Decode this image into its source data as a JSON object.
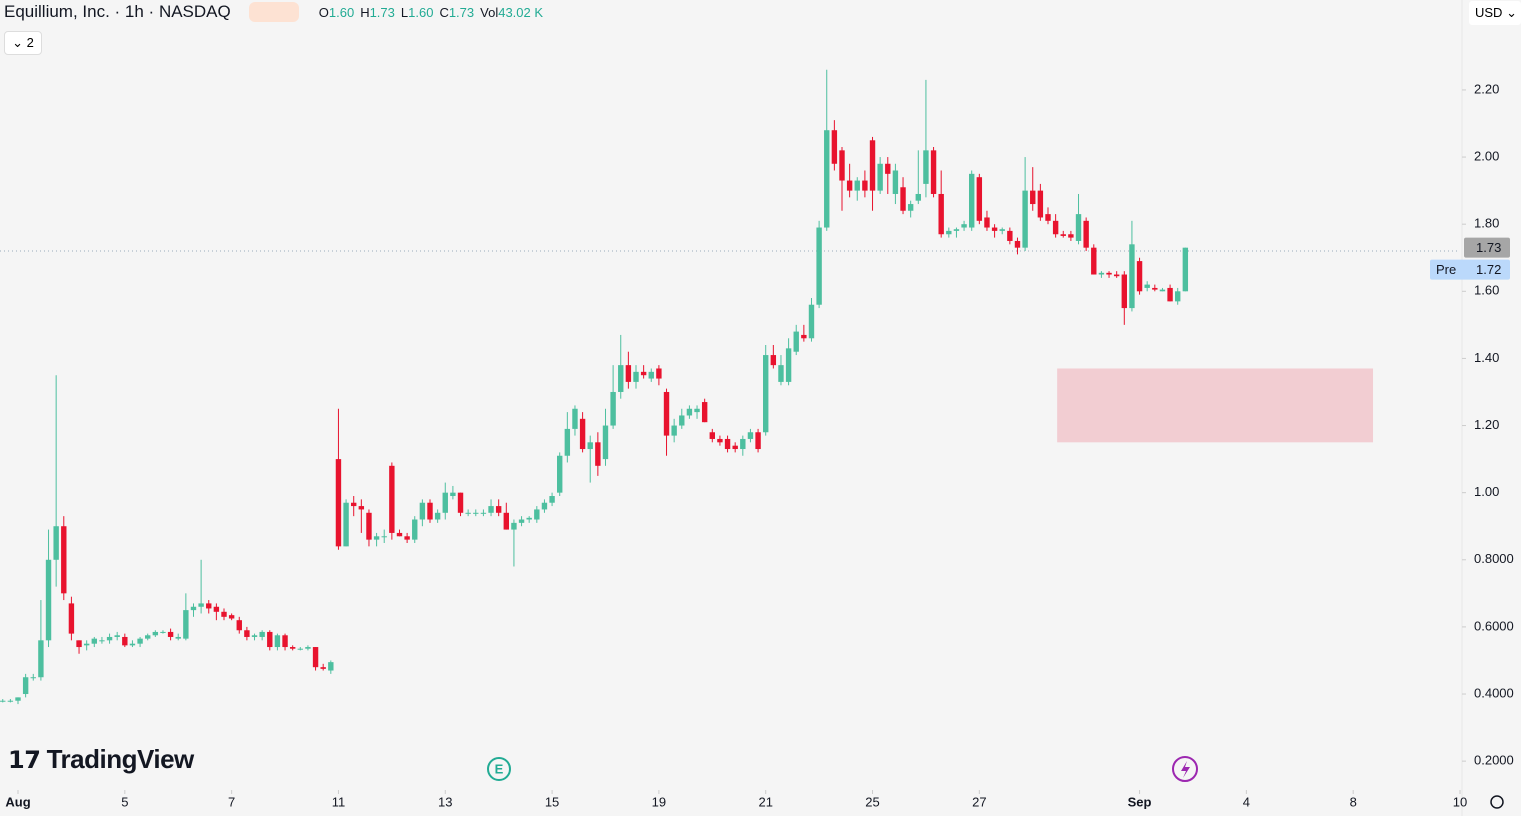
{
  "header": {
    "title": "Equillium, Inc. · 1h · NASDAQ",
    "ohlc": [
      {
        "label": "O",
        "value": "1.60"
      },
      {
        "label": "H",
        "value": "1.73"
      },
      {
        "label": "L",
        "value": "1.60"
      },
      {
        "label": "C",
        "value": "1.73"
      },
      {
        "label": "Vol",
        "value": "43.02 K"
      }
    ],
    "currency": "USD",
    "indicators_count": "2",
    "logo": "TradingView",
    "earnings_marker": "E"
  },
  "chart_data": {
    "type": "candlestick",
    "up_color": "#4dbf9f",
    "down_color": "#e8132e",
    "x": [
      -2,
      -1,
      0,
      1,
      2,
      3,
      4,
      5,
      6,
      7,
      8,
      9,
      10,
      11,
      12,
      13,
      14,
      15,
      16,
      17,
      18,
      19,
      20,
      21,
      22,
      23,
      24,
      25,
      26,
      27,
      28,
      29,
      30,
      31,
      32,
      33,
      34,
      35,
      36,
      37,
      38,
      39,
      40,
      41,
      42,
      43,
      44,
      45,
      46,
      47,
      48,
      49,
      50,
      51,
      52,
      53,
      54,
      55,
      56,
      57,
      58,
      59,
      60,
      61,
      62,
      63,
      64,
      65,
      66,
      67,
      68,
      69,
      70,
      71,
      72,
      73,
      74,
      75,
      76,
      77,
      78,
      79,
      80,
      81,
      82,
      83,
      84,
      85,
      86,
      87,
      88,
      89,
      90,
      91,
      92,
      93,
      94,
      95,
      96,
      97,
      98,
      99,
      100,
      101,
      102,
      103,
      104,
      105,
      106,
      107,
      108,
      109,
      110,
      111,
      112,
      113,
      114,
      115,
      116,
      117,
      118,
      119,
      120,
      121,
      122,
      123,
      124,
      125,
      126,
      127,
      128,
      129,
      130,
      131,
      132,
      133,
      134,
      135,
      136,
      137,
      138,
      139,
      140,
      141,
      142,
      143,
      144,
      145,
      146,
      147,
      148,
      149,
      150,
      151,
      152,
      153
    ],
    "open": [
      0.38,
      0.38,
      0.38,
      0.4,
      0.45,
      0.45,
      0.56,
      0.8,
      0.9,
      0.67,
      0.56,
      0.545,
      0.55,
      0.56,
      0.56,
      0.57,
      0.57,
      0.545,
      0.55,
      0.565,
      0.575,
      0.585,
      0.585,
      0.565,
      0.565,
      0.65,
      0.66,
      0.67,
      0.66,
      0.645,
      0.635,
      0.62,
      0.59,
      0.57,
      0.57,
      0.585,
      0.54,
      0.575,
      0.54,
      0.535,
      0.535,
      0.54,
      0.48,
      0.47,
      1.1,
      0.84,
      0.97,
      0.96,
      0.94,
      0.86,
      0.87,
      1.08,
      0.88,
      0.87,
      0.86,
      0.92,
      0.97,
      0.92,
      0.94,
      0.99,
      1.0,
      0.94,
      0.94,
      0.94,
      0.94,
      0.96,
      0.94,
      0.89,
      0.91,
      0.92,
      0.92,
      0.95,
      0.97,
      1.0,
      1.11,
      1.19,
      1.22,
      1.13,
      1.15,
      1.1,
      1.2,
      1.3,
      1.38,
      1.33,
      1.36,
      1.34,
      1.37,
      1.3,
      1.17,
      1.2,
      1.23,
      1.24,
      1.27,
      1.18,
      1.16,
      1.16,
      1.14,
      1.13,
      1.16,
      1.18,
      1.18,
      1.41,
      1.33,
      1.33,
      1.42,
      1.47,
      1.46,
      1.56,
      1.79,
      2.08,
      2.02,
      1.93,
      1.9,
      1.93,
      2.05,
      1.9,
      1.98,
      1.89,
      1.91,
      1.84,
      1.87,
      1.92,
      2.02,
      1.89,
      1.77,
      1.78,
      1.79,
      1.79,
      1.94,
      1.82,
      1.79,
      1.78,
      1.78,
      1.75,
      1.73,
      1.9,
      1.9,
      1.83,
      1.81,
      1.77,
      1.77,
      1.75,
      1.81,
      1.73,
      1.65,
      1.655,
      1.65,
      1.65,
      1.55,
      1.69,
      1.61,
      1.61,
      1.6,
      1.61,
      1.57,
      1.6
    ],
    "high": [
      0.385,
      0.385,
      0.39,
      0.46,
      0.46,
      0.68,
      0.89,
      1.35,
      0.93,
      0.69,
      0.56,
      0.56,
      0.57,
      0.57,
      0.58,
      0.585,
      0.58,
      0.56,
      0.57,
      0.58,
      0.59,
      0.59,
      0.595,
      0.58,
      0.7,
      0.67,
      0.8,
      0.68,
      0.67,
      0.655,
      0.64,
      0.63,
      0.6,
      0.58,
      0.59,
      0.59,
      0.58,
      0.58,
      0.545,
      0.54,
      0.545,
      0.54,
      0.49,
      0.5,
      1.25,
      0.98,
      0.99,
      0.98,
      0.95,
      0.88,
      0.89,
      1.09,
      0.89,
      0.88,
      0.93,
      0.98,
      0.98,
      0.95,
      1.03,
      1.02,
      1.0,
      0.95,
      0.95,
      0.95,
      0.98,
      0.98,
      0.97,
      0.92,
      0.93,
      0.93,
      0.96,
      0.98,
      1.0,
      1.12,
      1.24,
      1.26,
      1.24,
      1.17,
      1.18,
      1.25,
      1.38,
      1.47,
      1.42,
      1.38,
      1.38,
      1.37,
      1.38,
      1.31,
      1.22,
      1.25,
      1.26,
      1.26,
      1.28,
      1.19,
      1.17,
      1.17,
      1.15,
      1.17,
      1.19,
      1.19,
      1.44,
      1.44,
      1.41,
      1.46,
      1.5,
      1.5,
      1.58,
      1.81,
      2.26,
      2.11,
      2.03,
      1.98,
      1.94,
      1.96,
      2.06,
      2.0,
      2.0,
      1.98,
      1.94,
      1.87,
      2.02,
      2.23,
      2.03,
      1.96,
      1.79,
      1.79,
      1.81,
      1.96,
      1.95,
      1.84,
      1.8,
      1.79,
      1.79,
      1.76,
      2.0,
      1.97,
      1.92,
      1.85,
      1.83,
      1.78,
      1.78,
      1.89,
      1.82,
      1.74,
      1.66,
      1.66,
      1.66,
      1.66,
      1.81,
      1.7,
      1.63,
      1.62,
      1.61,
      1.62,
      1.61,
      1.73
    ],
    "low": [
      0.375,
      0.375,
      0.37,
      0.39,
      0.44,
      0.44,
      0.54,
      0.72,
      0.68,
      0.56,
      0.52,
      0.53,
      0.54,
      0.55,
      0.55,
      0.56,
      0.54,
      0.54,
      0.54,
      0.56,
      0.57,
      0.58,
      0.56,
      0.56,
      0.56,
      0.63,
      0.64,
      0.64,
      0.62,
      0.62,
      0.62,
      0.58,
      0.56,
      0.56,
      0.56,
      0.53,
      0.53,
      0.53,
      0.53,
      0.53,
      0.53,
      0.47,
      0.47,
      0.46,
      0.83,
      0.84,
      0.93,
      0.88,
      0.84,
      0.84,
      0.85,
      0.86,
      0.87,
      0.85,
      0.85,
      0.9,
      0.91,
      0.91,
      0.92,
      0.98,
      0.93,
      0.93,
      0.93,
      0.93,
      0.93,
      0.93,
      0.89,
      0.78,
      0.9,
      0.91,
      0.91,
      0.94,
      0.96,
      0.99,
      1.09,
      1.17,
      1.12,
      1.03,
      1.05,
      1.08,
      1.19,
      1.28,
      1.31,
      1.31,
      1.34,
      1.33,
      1.32,
      1.11,
      1.15,
      1.19,
      1.22,
      1.22,
      1.21,
      1.15,
      1.14,
      1.12,
      1.12,
      1.11,
      1.15,
      1.12,
      1.17,
      1.37,
      1.32,
      1.32,
      1.41,
      1.45,
      1.45,
      1.55,
      1.78,
      1.96,
      1.84,
      1.88,
      1.87,
      1.88,
      1.84,
      1.89,
      1.89,
      1.86,
      1.83,
      1.82,
      1.86,
      1.88,
      1.88,
      1.76,
      1.76,
      1.76,
      1.78,
      1.78,
      1.8,
      1.78,
      1.76,
      1.77,
      1.74,
      1.71,
      1.72,
      1.84,
      1.81,
      1.8,
      1.76,
      1.76,
      1.75,
      1.74,
      1.72,
      1.65,
      1.64,
      1.64,
      1.64,
      1.5,
      1.54,
      1.59,
      1.6,
      1.6,
      1.6,
      1.57,
      1.56,
      1.6
    ],
    "close": [
      0.38,
      0.38,
      0.39,
      0.45,
      0.45,
      0.56,
      0.8,
      0.9,
      0.7,
      0.58,
      0.54,
      0.55,
      0.565,
      0.56,
      0.57,
      0.575,
      0.545,
      0.55,
      0.565,
      0.575,
      0.585,
      0.585,
      0.57,
      0.57,
      0.65,
      0.66,
      0.67,
      0.655,
      0.645,
      0.63,
      0.625,
      0.59,
      0.57,
      0.575,
      0.585,
      0.54,
      0.575,
      0.54,
      0.535,
      0.535,
      0.54,
      0.48,
      0.475,
      0.495,
      0.84,
      0.97,
      0.96,
      0.95,
      0.86,
      0.87,
      0.87,
      0.88,
      0.87,
      0.86,
      0.92,
      0.97,
      0.92,
      0.94,
      1.0,
      1.0,
      0.94,
      0.94,
      0.94,
      0.94,
      0.96,
      0.94,
      0.89,
      0.91,
      0.92,
      0.925,
      0.95,
      0.97,
      0.99,
      1.11,
      1.19,
      1.25,
      1.13,
      1.15,
      1.08,
      1.2,
      1.3,
      1.38,
      1.33,
      1.36,
      1.35,
      1.36,
      1.34,
      1.17,
      1.2,
      1.23,
      1.25,
      1.25,
      1.21,
      1.16,
      1.15,
      1.13,
      1.13,
      1.16,
      1.18,
      1.13,
      1.41,
      1.38,
      1.38,
      1.43,
      1.48,
      1.46,
      1.56,
      1.79,
      2.08,
      1.98,
      1.93,
      1.9,
      1.93,
      1.9,
      1.9,
      1.98,
      1.95,
      1.96,
      1.84,
      1.86,
      1.89,
      2.02,
      1.89,
      1.77,
      1.78,
      1.785,
      1.8,
      1.95,
      1.81,
      1.79,
      1.78,
      1.785,
      1.75,
      1.73,
      1.9,
      1.86,
      1.82,
      1.81,
      1.77,
      1.765,
      1.76,
      1.83,
      1.73,
      1.65,
      1.655,
      1.65,
      1.645,
      1.55,
      1.74,
      1.6,
      1.62,
      1.605,
      1.605,
      1.57,
      1.6,
      1.73
    ],
    "xlim": [
      -2.36,
      189.0
    ],
    "xticks": [
      {
        "value": 0,
        "label": "Aug"
      },
      {
        "value": 14,
        "label": "5"
      },
      {
        "value": 28,
        "label": "7"
      },
      {
        "value": 42,
        "label": "11"
      },
      {
        "value": 56,
        "label": "13"
      },
      {
        "value": 70,
        "label": "15"
      },
      {
        "value": 84,
        "label": "19"
      },
      {
        "value": 98,
        "label": "21"
      },
      {
        "value": 112,
        "label": "25"
      },
      {
        "value": 126,
        "label": "27"
      },
      {
        "value": 147,
        "label": "Sep"
      },
      {
        "value": 161,
        "label": "4"
      },
      {
        "value": 175,
        "label": "8"
      },
      {
        "value": 189,
        "label": "10"
      }
    ],
    "ylim": [
      0.114,
      2.468
    ],
    "yticks": [
      {
        "value": 2.2,
        "label": "2.20"
      },
      {
        "value": 2.0,
        "label": "2.00"
      },
      {
        "value": 1.8,
        "label": "1.80"
      },
      {
        "value": 1.6,
        "label": "1.60"
      },
      {
        "value": 1.4,
        "label": "1.40"
      },
      {
        "value": 1.2,
        "label": "1.20"
      },
      {
        "value": 1.0,
        "label": "1.00"
      },
      {
        "value": 0.8,
        "label": "0.8000"
      },
      {
        "value": 0.6,
        "label": "0.6000"
      },
      {
        "value": 0.4,
        "label": "0.4000"
      },
      {
        "value": 0.2,
        "label": "0.2000"
      }
    ],
    "last_price": {
      "value": 1.73,
      "label": "1.73"
    },
    "pre_price": {
      "value": 1.72,
      "label": "1.72",
      "tag": "Pre"
    },
    "zone": {
      "x_start": 136.2,
      "x_end": 177.6,
      "top": 1.37,
      "bottom": 1.15,
      "color": "#f2cdd2"
    }
  }
}
